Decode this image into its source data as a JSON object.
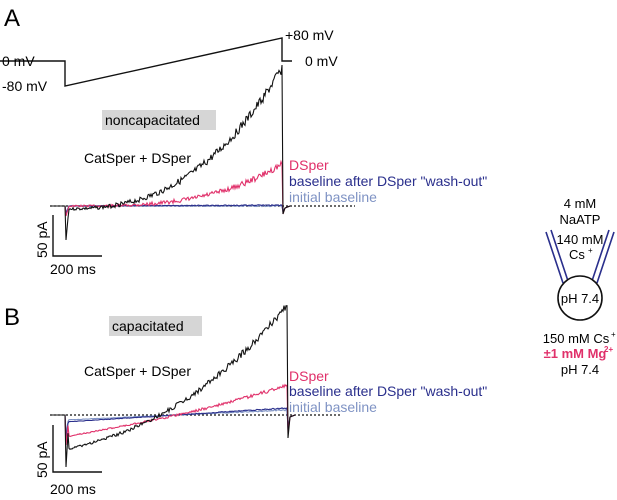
{
  "panels": [
    {
      "letter": "A",
      "condition": "noncapacitated",
      "trace_labels": {
        "catsper": "CatSper + DSper",
        "dsper": "DSper",
        "washout": "baseline after DSper \"wash-out\"",
        "initial": "initial baseline"
      },
      "scale_bar": {
        "current": "50 pA",
        "time": "200 ms"
      }
    },
    {
      "letter": "B",
      "condition": "capacitated",
      "trace_labels": {
        "catsper": "CatSper + DSper",
        "dsper": "DSper",
        "washout": "baseline after DSper \"wash-out\"",
        "initial": "initial baseline"
      },
      "scale_bar": {
        "current": "50 pA",
        "time": "200 ms"
      }
    }
  ],
  "protocol": {
    "hold_label": "0 mV",
    "start_label": "-80 mV",
    "end_label": "+80 mV",
    "return_label": "0 mV"
  },
  "pipette": {
    "line1": "4 mM",
    "line2": "NaATP",
    "line3": "140 mM",
    "line4": "Cs",
    "line4_sup": "+"
  },
  "cell": {
    "ph": "pH 7.4"
  },
  "bath": {
    "line1": "150 mM Cs",
    "line1_sup": "+",
    "line2": "±1 mM Mg",
    "line2_sup": "2+",
    "line3": "pH 7.4"
  },
  "colors": {
    "catsper": "#111111",
    "dsper": "#e0306a",
    "washout": "#2a2f8c",
    "initial": "#7f93c4",
    "label_bg": "#d6d6d6"
  }
}
